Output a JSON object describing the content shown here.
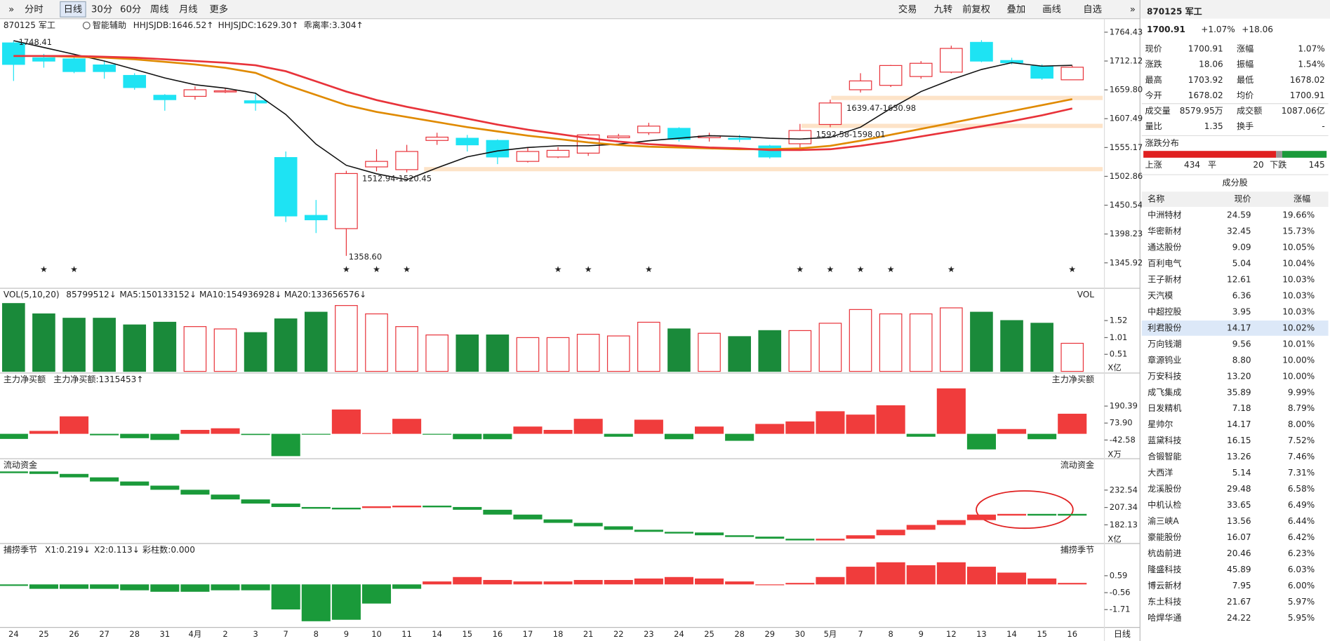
{
  "toolbar": {
    "left": [
      "分时",
      "日线",
      "30分",
      "60分",
      "周线",
      "月线",
      "更多"
    ],
    "right": [
      "交易",
      "九转",
      "前复权",
      "叠加",
      "画线",
      "自选"
    ],
    "period": "日线"
  },
  "chart_data": [
    {
      "type": "candlestick",
      "title": "870125 军工",
      "indicator": "智能辅助",
      "up_color": "#e8333a",
      "down_color": "#1ee3f3",
      "categories": [
        "24",
        "25",
        "26",
        "27",
        "28",
        "31",
        "4月",
        "2",
        "3",
        "7",
        "8",
        "9",
        "10",
        "11",
        "14",
        "15",
        "16",
        "17",
        "18",
        "21",
        "22",
        "23",
        "24",
        "25",
        "28",
        "29",
        "30",
        "5月",
        "7",
        "8",
        "9",
        "12",
        "13",
        "14",
        "15",
        "16"
      ],
      "open": [
        1745,
        1718,
        1716,
        1705,
        1686,
        1650,
        1648,
        1656,
        1640,
        1537,
        1432,
        1408,
        1520,
        1515,
        1568,
        1572,
        1568,
        1530,
        1538,
        1545,
        1573,
        1582,
        1590,
        1573,
        1572,
        1558,
        1562,
        1597,
        1660,
        1668,
        1684,
        1692,
        1746,
        1713,
        1703,
        1678.02
      ],
      "high": [
        1748.41,
        1725,
        1722,
        1712,
        1690,
        1652,
        1666,
        1662,
        1652,
        1548,
        1460,
        1512.94,
        1552,
        1560,
        1582,
        1578,
        1570,
        1556,
        1556,
        1580,
        1580,
        1600,
        1592,
        1582,
        1578,
        1560,
        1598.01,
        1642,
        1690,
        1705,
        1712,
        1740,
        1750,
        1718,
        1706,
        1703.92
      ],
      "low": [
        1676,
        1700,
        1690,
        1680,
        1660,
        1622,
        1642,
        1654,
        1622,
        1420,
        1400,
        1358.6,
        1512,
        1510,
        1560,
        1548,
        1525,
        1528,
        1536,
        1540,
        1571,
        1578,
        1566,
        1566,
        1565,
        1535,
        1554,
        1592,
        1655,
        1665,
        1680,
        1690,
        1710,
        1706,
        1678,
        1678.02
      ],
      "close": [
        1706,
        1712,
        1693,
        1693,
        1664,
        1642,
        1660,
        1658,
        1636,
        1431,
        1424,
        1508,
        1530,
        1548,
        1574,
        1560,
        1538,
        1548,
        1550,
        1578,
        1576,
        1594,
        1570,
        1576,
        1570,
        1538,
        1586,
        1636,
        1676,
        1704,
        1708,
        1735,
        1712,
        1709,
        1681,
        1700.91
      ],
      "series": [
        {
          "color": "#111111",
          "values": [
            1749.0,
            1736.7,
            1724.4,
            1712.1,
            1696.8,
            1681.4,
            1669.1,
            1662.9,
            1653.7,
            1615.2,
            1561.3,
            1522.9,
            1507.5,
            1496.7,
            1518.2,
            1538.3,
            1549.0,
            1555.2,
            1558.3,
            1558.3,
            1561.3,
            1567.5,
            1572.1,
            1576.7,
            1575.2,
            1572.1,
            1570.6,
            1573.6,
            1592.1,
            1626.0,
            1656.7,
            1678.3,
            1696.8,
            1709.1,
            1702.9,
            1704.4
          ]
        },
        {
          "name": "HHJSJDB:1646.52↑",
          "color": "#e08a00",
          "values": [
            1721.3,
            1721.3,
            1719.8,
            1718.3,
            1715.2,
            1710.6,
            1705.9,
            1699.8,
            1690.6,
            1669.0,
            1650.6,
            1632.1,
            1619.8,
            1610.6,
            1601.3,
            1592.1,
            1584.4,
            1576.7,
            1570.6,
            1564.4,
            1559.8,
            1556.7,
            1555.2,
            1553.6,
            1552.1,
            1552.1,
            1553.6,
            1558.3,
            1567.5,
            1578.3,
            1589.0,
            1599.8,
            1610.6,
            1621.3,
            1632.1,
            1642.9
          ]
        },
        {
          "name": "HHJSJDC:1629.30↑",
          "color": "#e8333a",
          "values": [
            1721.3,
            1721.3,
            1721.3,
            1719.8,
            1718.3,
            1715.2,
            1712.1,
            1709.0,
            1704.4,
            1693.6,
            1675.2,
            1656.7,
            1641.3,
            1629.0,
            1618.3,
            1607.5,
            1596.7,
            1587.5,
            1579.8,
            1572.1,
            1566.0,
            1561.3,
            1558.3,
            1555.2,
            1553.6,
            1550.6,
            1550.6,
            1552.1,
            1558.3,
            1566.0,
            1575.2,
            1584.4,
            1593.6,
            1602.9,
            1613.6,
            1626.0
          ]
        }
      ],
      "extra_legend": {
        "text": "乖离率:3.304↑",
        "color": "#e08a00"
      },
      "annotations": [
        "1748.41",
        "1358.60",
        "1512.94-1520.45",
        "1639.47-1630.98",
        "1592.58-1598.01"
      ],
      "ylim": [
        1321.3,
        1789.0
      ],
      "yticks": [
        1345.92,
        1398.23,
        1450.54,
        1502.86,
        1555.17,
        1607.49,
        {
          "value": 1659.8,
          "label": "1659.80"
        },
        1712.12,
        1764.43
      ]
    },
    {
      "type": "volume",
      "title": "VOL(5,10,20)",
      "right_title": "VOL",
      "unit": "X亿",
      "legend": [
        {
          "text": "85799512↓",
          "color": "#111111"
        },
        {
          "text": "MA5:150133152↓",
          "color": "#e08a00"
        },
        {
          "text": "MA10:154936928↓",
          "color": "#d020d0"
        },
        {
          "text": "MA20:133656576↓",
          "color": "#1a9a3a"
        }
      ],
      "values": [
        2.03,
        1.72,
        1.59,
        1.59,
        1.39,
        1.47,
        1.34,
        1.27,
        1.16,
        1.57,
        1.77,
        1.97,
        1.72,
        1.34,
        1.09,
        1.09,
        1.09,
        1.01,
        1.01,
        1.11,
        1.06,
        1.47,
        1.27,
        1.14,
        1.04,
        1.22,
        1.22,
        1.44,
        1.85,
        1.72,
        1.72,
        1.9,
        1.77,
        1.52,
        1.44,
        0.84
      ],
      "ylim": [
        0,
        2.08
      ],
      "yticks": [
        0.51,
        1.01,
        1.52
      ]
    },
    {
      "type": "bar",
      "title": "主力净买额",
      "right_title": "主力净买额",
      "unit": "X万",
      "legend": [
        {
          "text": "主力净买额:1315453↑",
          "color": "#e8333a"
        }
      ],
      "values": [
        -35,
        20,
        120,
        -10,
        -30,
        -42,
        27,
        38,
        -8,
        -153,
        -5,
        167,
        5,
        103,
        -5,
        -37,
        -37,
        50,
        27,
        103,
        -20,
        97,
        -37,
        50,
        -48,
        68,
        85,
        155,
        132,
        196,
        -20,
        312,
        -107,
        33,
        -37,
        138
      ],
      "ylim": [
        -165,
        324
      ],
      "yticks": [
        {
          "value": -42.58,
          "label": "-42.58"
        },
        {
          "value": 73.9,
          "label": "73.90"
        },
        190.39
      ]
    },
    {
      "type": "flow",
      "title": "流动资金",
      "right_title": "流动资金",
      "unit": "X亿",
      "legend": [],
      "values": [
        259.6,
        256,
        251,
        245,
        239,
        233,
        226,
        219,
        213,
        208,
        207,
        207,
        209,
        210,
        208,
        204,
        197,
        190,
        185,
        180,
        175,
        172,
        171,
        167,
        165,
        162,
        161,
        162,
        167,
        175,
        182,
        189,
        197,
        198,
        198,
        196
      ],
      "ylim": [
        156.3,
        267
      ],
      "yticks": [
        182.13,
        207.34,
        232.54
      ]
    },
    {
      "type": "bar",
      "title": "捕捞季节",
      "right_title": "捕捞季节",
      "legend": [
        {
          "text": "X1:0.219↓",
          "color": "#e08a00"
        },
        {
          "text": "X2:0.113↓",
          "color": "#d020d0"
        },
        {
          "text": "彩柱数:0.000",
          "color": "#1a9a3a"
        }
      ],
      "values": [
        -0.1,
        -0.3,
        -0.3,
        -0.3,
        -0.4,
        -0.5,
        -0.5,
        -0.4,
        -0.4,
        -1.7,
        -2.5,
        -2.4,
        -1.3,
        -0.3,
        0.2,
        0.5,
        0.3,
        0.2,
        0.2,
        0.3,
        0.3,
        0.4,
        0.5,
        0.4,
        0.2,
        0.0,
        0.1,
        0.5,
        1.2,
        1.5,
        1.3,
        1.5,
        1.2,
        0.8,
        0.4,
        0.1
      ],
      "ylim": [
        -2.92,
        1.97
      ],
      "yticks": [
        -1.71,
        -0.56,
        0.59
      ]
    }
  ],
  "quote": {
    "price": "1700.91",
    "change_pct": "+1.07%",
    "change": "+18.06",
    "rows": [
      [
        "现价",
        "1700.91",
        "涨幅",
        "1.07%"
      ],
      [
        "涨跌",
        "18.06",
        "振幅",
        "1.54%"
      ],
      [
        "最高",
        "1703.92",
        "最低",
        "1678.02"
      ],
      [
        "今开",
        "1678.02",
        "均价",
        "1700.91"
      ],
      [
        "成交量",
        "8579.95万",
        "成交额",
        "1087.06亿"
      ],
      [
        "量比",
        "1.35",
        "换手",
        "-"
      ]
    ]
  },
  "distribution": {
    "title": "涨跌分布",
    "up_label": "上涨",
    "up": 434,
    "flat_label": "平",
    "flat": 20,
    "down_label": "下跌",
    "down": 145
  },
  "constituents": {
    "title": "成分股",
    "headers": [
      "名称",
      "现价",
      "涨幅"
    ],
    "rows": [
      {
        "name": "中洲特材",
        "price": "24.59",
        "change": "19.66%"
      },
      {
        "name": "华密新材",
        "price": "32.45",
        "change": "15.73%"
      },
      {
        "name": "通达股份",
        "price": "9.09",
        "change": "10.05%"
      },
      {
        "name": "百利电气",
        "price": "5.04",
        "change": "10.04%"
      },
      {
        "name": "王子新材",
        "price": "12.61",
        "change": "10.03%"
      },
      {
        "name": "天汽模",
        "price": "6.36",
        "change": "10.03%",
        "color": "#1aa81a"
      },
      {
        "name": "中超控股",
        "price": "3.95",
        "change": "10.03%"
      },
      {
        "name": "利君股份",
        "price": "14.17",
        "change": "10.02%",
        "color": "#2060d0"
      },
      {
        "name": "万向钱潮",
        "price": "9.56",
        "change": "10.01%"
      },
      {
        "name": "章源钨业",
        "price": "8.80",
        "change": "10.00%"
      },
      {
        "name": "万安科技",
        "price": "13.20",
        "change": "10.00%"
      },
      {
        "name": "成飞集成",
        "price": "35.89",
        "change": "9.99%",
        "color": "#2060d0"
      },
      {
        "name": "日发精机",
        "price": "7.18",
        "change": "8.79%"
      },
      {
        "name": "星帅尔",
        "price": "14.17",
        "change": "8.00%"
      },
      {
        "name": "蓝黛科技",
        "price": "16.15",
        "change": "7.52%"
      },
      {
        "name": "合锻智能",
        "price": "13.26",
        "change": "7.46%"
      },
      {
        "name": "大西洋",
        "price": "5.14",
        "change": "7.31%"
      },
      {
        "name": "龙溪股份",
        "price": "29.48",
        "change": "6.58%",
        "color": "#2060d0"
      },
      {
        "name": "中机认检",
        "price": "33.65",
        "change": "6.49%"
      },
      {
        "name": "渝三峡A",
        "price": "13.56",
        "change": "6.44%"
      },
      {
        "name": "豪能股份",
        "price": "16.07",
        "change": "6.42%",
        "color": "#2060d0"
      },
      {
        "name": "杭齿前进",
        "price": "20.46",
        "change": "6.23%"
      },
      {
        "name": "隆盛科技",
        "price": "45.89",
        "change": "6.03%"
      },
      {
        "name": "博云新材",
        "price": "7.95",
        "change": "6.00%"
      },
      {
        "name": "东土科技",
        "price": "21.67",
        "change": "5.97%",
        "color": "#2060d0"
      },
      {
        "name": "哈焊华通",
        "price": "24.22",
        "change": "5.95%"
      }
    ]
  }
}
